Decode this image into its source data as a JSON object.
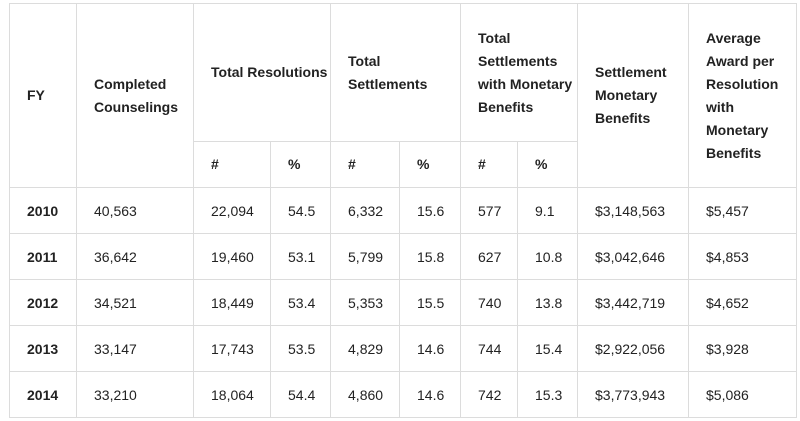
{
  "headers": {
    "fy": "FY",
    "completed_counselings": "Completed Counselings",
    "total_resolutions": "Total Resolutions",
    "total_settlements": "Total Settlements",
    "total_settlements_monetary": "Total Settlements with Monetary Benefits",
    "settlement_monetary_benefits": "Settlement Monetary Benefits",
    "average_award": "Average Award per Resolution with Monetary Benefits",
    "count_symbol": "#",
    "percent_symbol": "%"
  },
  "rows": [
    {
      "fy": "2010",
      "completed": "40,563",
      "res_n": "22,094",
      "res_pct": "54.5",
      "set_n": "6,332",
      "set_pct": "15.6",
      "mon_n": "577",
      "mon_pct": "9.1",
      "benefits": "$3,148,563",
      "avg": "$5,457"
    },
    {
      "fy": "2011",
      "completed": "36,642",
      "res_n": "19,460",
      "res_pct": "53.1",
      "set_n": "5,799",
      "set_pct": "15.8",
      "mon_n": "627",
      "mon_pct": "10.8",
      "benefits": "$3,042,646",
      "avg": "$4,853"
    },
    {
      "fy": "2012",
      "completed": "34,521",
      "res_n": "18,449",
      "res_pct": "53.4",
      "set_n": "5,353",
      "set_pct": "15.5",
      "mon_n": "740",
      "mon_pct": "13.8",
      "benefits": "$3,442,719",
      "avg": "$4,652"
    },
    {
      "fy": "2013",
      "completed": "33,147",
      "res_n": "17,743",
      "res_pct": "53.5",
      "set_n": "4,829",
      "set_pct": "14.6",
      "mon_n": "744",
      "mon_pct": "15.4",
      "benefits": "$2,922,056",
      "avg": "$3,928"
    },
    {
      "fy": "2014",
      "completed": "33,210",
      "res_n": "18,064",
      "res_pct": "54.4",
      "set_n": "4,860",
      "set_pct": "14.6",
      "mon_n": "742",
      "mon_pct": "15.3",
      "benefits": "$3,773,943",
      "avg": "$5,086"
    }
  ]
}
